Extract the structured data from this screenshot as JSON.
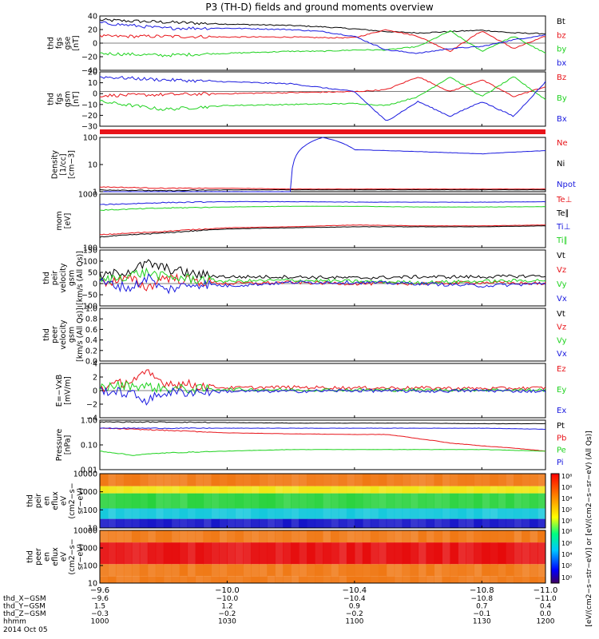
{
  "title": "P3 (TH-D) fields and ground moments overview",
  "colors": {
    "black": "#000000",
    "red": "#e8141a",
    "green": "#1ed21e",
    "blue": "#1a1adf"
  },
  "chart_data": [
    {
      "id": "fgs_gse",
      "type": "line",
      "ylabel": [
        "thd",
        "fgs",
        "gse",
        "[nT]"
      ],
      "ylim": [
        -40,
        40
      ],
      "yticks": [
        "40",
        "20",
        "0",
        "−20",
        "−40"
      ],
      "legend": [
        "Bt",
        "bz",
        "by",
        "bx"
      ],
      "series": [
        {
          "name": "Bt",
          "color": "black",
          "x": [
            -9.6,
            -9.8,
            -10.0,
            -10.2,
            -10.3,
            -10.4,
            -10.5,
            -10.6,
            -10.7,
            -10.8,
            -10.9,
            -11.0
          ],
          "y": [
            34,
            31,
            28,
            26,
            24,
            21,
            17,
            15,
            17,
            19,
            15,
            14
          ]
        },
        {
          "name": "bz",
          "color": "red",
          "x": [
            -9.6,
            -9.8,
            -10.0,
            -10.2,
            -10.3,
            -10.4,
            -10.5,
            -10.6,
            -10.7,
            -10.8,
            -10.9,
            -11.0
          ],
          "y": [
            10,
            10,
            9,
            9,
            8,
            8,
            20,
            10,
            -12,
            18,
            -8,
            10
          ]
        },
        {
          "name": "by",
          "color": "green",
          "x": [
            -9.6,
            -9.8,
            -10.0,
            -10.2,
            -10.3,
            -10.4,
            -10.5,
            -10.6,
            -10.7,
            -10.8,
            -10.9,
            -11.0
          ],
          "y": [
            -15,
            -18,
            -15,
            -12,
            -12,
            -10,
            -10,
            -5,
            18,
            -12,
            10,
            -15
          ]
        },
        {
          "name": "bx",
          "color": "blue",
          "x": [
            -9.6,
            -9.8,
            -10.0,
            -10.2,
            -10.3,
            -10.4,
            -10.5,
            -10.6,
            -10.7,
            -10.8,
            -10.9,
            -11.0
          ],
          "y": [
            30,
            22,
            22,
            20,
            17,
            10,
            -10,
            -15,
            -8,
            -5,
            5,
            12
          ]
        }
      ]
    },
    {
      "id": "fgs_gsm",
      "type": "line",
      "ylabel": [
        "thd",
        "fgs",
        "gsm",
        "[nT]"
      ],
      "ylim": [
        -35,
        20
      ],
      "yticks": [
        "20",
        "10",
        "0",
        "−10",
        "−20",
        "−30"
      ],
      "legend": [
        "Bz",
        "By",
        "Bx"
      ],
      "series": [
        {
          "name": "Bz",
          "color": "red",
          "x": [
            -9.6,
            -9.8,
            -10.0,
            -10.2,
            -10.4,
            -10.5,
            -10.6,
            -10.7,
            -10.8,
            -10.9,
            -11.0
          ],
          "y": [
            -4,
            -3,
            -2,
            -1,
            0,
            2,
            15,
            0,
            12,
            -5,
            5
          ]
        },
        {
          "name": "By",
          "color": "green",
          "x": [
            -9.6,
            -9.8,
            -10.0,
            -10.2,
            -10.4,
            -10.5,
            -10.6,
            -10.7,
            -10.8,
            -10.9,
            -11.0
          ],
          "y": [
            -10,
            -18,
            -14,
            -13,
            -12,
            -14,
            -5,
            15,
            -5,
            15,
            -8
          ]
        },
        {
          "name": "Bx",
          "color": "blue",
          "x": [
            -9.6,
            -9.8,
            -10.0,
            -10.2,
            -10.4,
            -10.5,
            -10.6,
            -10.7,
            -10.8,
            -10.9,
            -11.0
          ],
          "y": [
            15,
            12,
            10,
            8,
            0,
            -30,
            -10,
            -25,
            -10,
            -25,
            10
          ]
        }
      ]
    },
    {
      "id": "density",
      "type": "line",
      "scale": "log",
      "ylabel": [
        "Density",
        "[1/cc]",
        "[cm−3]"
      ],
      "ylim": [
        1,
        200
      ],
      "yticks": [
        "100",
        "10",
        "1"
      ],
      "legend": [
        "Ne",
        "Ni",
        "Npot"
      ],
      "series": [
        {
          "name": "Ne",
          "color": "red",
          "x": [
            -9.6,
            -9.8,
            -10.0,
            -10.2,
            -10.4,
            -10.6,
            -10.8,
            -11.0
          ],
          "y": [
            1.6,
            1.4,
            1.4,
            1.3,
            1.3,
            1.3,
            1.3,
            1.3
          ]
        },
        {
          "name": "Ni",
          "color": "black",
          "x": [
            -9.6,
            -9.8,
            -10.0,
            -10.2,
            -10.4,
            -10.6,
            -10.8,
            -11.0
          ],
          "y": [
            1.2,
            1.1,
            1.2,
            1.2,
            1.2,
            1.2,
            1.2,
            1.2
          ]
        },
        {
          "name": "Npot",
          "color": "blue",
          "x": [
            -9.6,
            -9.8,
            -10.0,
            -10.2,
            -10.3,
            -10.4,
            -10.6,
            -10.8,
            -11.0
          ],
          "y": [
            1.0,
            1.0,
            1.0,
            1.0,
            200,
            60,
            50,
            40,
            55
          ]
        }
      ]
    },
    {
      "id": "moms_temp",
      "type": "line",
      "scale": "log",
      "ylabel": [
        "mom",
        "[eV]"
      ],
      "ylim": [
        100,
        10000
      ],
      "yticks": [
        "1000",
        "100"
      ],
      "legend": [
        "Te⊥",
        "Te∥",
        "Ti⊥",
        "Ti∥"
      ],
      "series": [
        {
          "name": "Te⊥",
          "color": "red",
          "x": [
            -9.6,
            -9.8,
            -10.0,
            -10.2,
            -10.4,
            -10.6,
            -10.8,
            -11.0
          ],
          "y": [
            300,
            400,
            550,
            600,
            700,
            650,
            650,
            700
          ]
        },
        {
          "name": "Te∥",
          "color": "black",
          "x": [
            -9.6,
            -9.8,
            -10.0,
            -10.2,
            -10.4,
            -10.6,
            -10.8,
            -11.0
          ],
          "y": [
            250,
            350,
            500,
            550,
            600,
            600,
            600,
            650
          ]
        },
        {
          "name": "Ti⊥",
          "color": "blue",
          "x": [
            -9.6,
            -9.8,
            -10.0,
            -10.2,
            -10.4,
            -10.6,
            -10.8,
            -11.0
          ],
          "y": [
            4000,
            4800,
            5200,
            5200,
            5000,
            5000,
            5000,
            5200
          ]
        },
        {
          "name": "Ti∥",
          "color": "green",
          "x": [
            -9.6,
            -9.8,
            -10.0,
            -10.2,
            -10.4,
            -10.6,
            -10.8,
            -11.0
          ],
          "y": [
            2500,
            3000,
            3300,
            3500,
            3500,
            3300,
            3300,
            3400
          ]
        }
      ]
    },
    {
      "id": "peir_velocity",
      "type": "line",
      "ylabel": [
        "thd",
        "peir",
        "velocity",
        "gsm",
        "[km/s (All Qs)]"
      ],
      "ylim": [
        -100,
        150
      ],
      "yticks": [
        "150",
        "100",
        "50",
        "0",
        "−50",
        "−100"
      ],
      "legend": [
        "Vt",
        "Vz",
        "Vy",
        "Vx"
      ],
      "series": [
        {
          "name": "Vt",
          "color": "black",
          "x": [
            -9.6,
            -9.7,
            -9.75,
            -9.8,
            -9.9,
            -10.0,
            -10.2,
            -10.4,
            -10.6,
            -10.8,
            -11.0
          ],
          "y": [
            30,
            60,
            90,
            70,
            40,
            30,
            30,
            25,
            30,
            30,
            35
          ]
        },
        {
          "name": "Vz",
          "color": "red",
          "x": [
            -9.6,
            -9.7,
            -9.75,
            -9.8,
            -9.9,
            -10.0,
            -10.2,
            -10.4,
            -10.6,
            -10.8,
            -11.0
          ],
          "y": [
            5,
            20,
            -20,
            30,
            10,
            0,
            5,
            0,
            0,
            5,
            0
          ]
        },
        {
          "name": "Vy",
          "color": "green",
          "x": [
            -9.6,
            -9.7,
            -9.75,
            -9.8,
            -9.9,
            -10.0,
            -10.2,
            -10.4,
            -10.6,
            -10.8,
            -11.0
          ],
          "y": [
            10,
            40,
            50,
            30,
            20,
            10,
            15,
            10,
            5,
            10,
            15
          ]
        },
        {
          "name": "Vx",
          "color": "blue",
          "x": [
            -9.6,
            -9.7,
            -9.75,
            -9.8,
            -9.9,
            -10.0,
            -10.2,
            -10.4,
            -10.6,
            -10.8,
            -11.0
          ],
          "y": [
            5,
            -20,
            30,
            -30,
            0,
            -10,
            5,
            5,
            0,
            -10,
            0
          ]
        }
      ]
    },
    {
      "id": "peer_velocity",
      "type": "line",
      "ylabel": [
        "thd",
        "peer",
        "velocity",
        "gsm",
        "[km/s (All Qs)]"
      ],
      "ylim": [
        0,
        1
      ],
      "yticks": [
        "1.0",
        "0.8",
        "0.6",
        "0.4",
        "0.2",
        "0.0"
      ],
      "legend": [
        "Vt",
        "Vz",
        "Vy",
        "Vx"
      ],
      "series": []
    },
    {
      "id": "efield",
      "type": "line",
      "ylabel": [
        "E=−VxB",
        "[mV/m]"
      ],
      "ylim": [
        -4,
        4
      ],
      "yticks": [
        "4",
        "2",
        "0",
        "−2",
        "−4"
      ],
      "legend": [
        "Ez",
        "Ey",
        "Ex"
      ],
      "series": [
        {
          "name": "Ez",
          "color": "red",
          "x": [
            -9.6,
            -9.7,
            -9.75,
            -9.8,
            -9.9,
            -10.0,
            -10.2,
            -10.4,
            -10.6,
            -10.8,
            -11.0
          ],
          "y": [
            0.3,
            1.5,
            2.5,
            1.2,
            0.8,
            0.4,
            0.5,
            0.4,
            0.4,
            0.3,
            0.4
          ]
        },
        {
          "name": "Ey",
          "color": "green",
          "x": [
            -9.6,
            -9.7,
            -9.75,
            -9.8,
            -9.9,
            -10.0,
            -10.2,
            -10.4,
            -10.6,
            -10.8,
            -11.0
          ],
          "y": [
            0.5,
            0.8,
            0.6,
            0.3,
            0.2,
            0.2,
            0.1,
            0.1,
            0.1,
            0.1,
            0.1
          ]
        },
        {
          "name": "Ex",
          "color": "blue",
          "x": [
            -9.6,
            -9.7,
            -9.75,
            -9.8,
            -9.9,
            -10.0,
            -10.2,
            -10.4,
            -10.6,
            -10.8,
            -11.0
          ],
          "y": [
            0.1,
            -0.5,
            -1.5,
            -0.3,
            -0.2,
            -0.1,
            -0.1,
            0.0,
            -0.1,
            0.0,
            -0.1
          ]
        }
      ]
    },
    {
      "id": "pressure",
      "type": "line",
      "scale": "log",
      "ylabel": [
        "Pressure",
        "[nPa]"
      ],
      "ylim": [
        0.01,
        1.2
      ],
      "yticks": [
        "1.00",
        "0.10",
        "0.01"
      ],
      "legend": [
        "Pt",
        "Pb",
        "Pe",
        "Pi"
      ],
      "series": [
        {
          "name": "Pt",
          "color": "black",
          "x": [
            -9.6,
            -9.8,
            -10.0,
            -10.2,
            -10.4,
            -10.6,
            -10.8,
            -11.0
          ],
          "y": [
            1.0,
            1.0,
            0.95,
            0.9,
            0.9,
            0.9,
            0.85,
            0.85
          ]
        },
        {
          "name": "Pb",
          "color": "red",
          "x": [
            -9.6,
            -9.8,
            -10.0,
            -10.2,
            -10.4,
            -10.5,
            -10.6,
            -10.7,
            -10.8,
            -10.9,
            -11.0
          ],
          "y": [
            0.55,
            0.45,
            0.35,
            0.32,
            0.3,
            0.3,
            0.2,
            0.13,
            0.1,
            0.08,
            0.06
          ]
        },
        {
          "name": "Pe",
          "color": "green",
          "x": [
            -9.6,
            -9.7,
            -9.8,
            -10.0,
            -10.2,
            -10.4,
            -10.6,
            -10.8,
            -11.0
          ],
          "y": [
            0.06,
            0.04,
            0.05,
            0.06,
            0.07,
            0.07,
            0.07,
            0.07,
            0.06
          ]
        },
        {
          "name": "Pi",
          "color": "blue",
          "x": [
            -9.6,
            -9.8,
            -10.0,
            -10.2,
            -10.4,
            -10.6,
            -10.8,
            -11.0
          ],
          "y": [
            0.55,
            0.55,
            0.55,
            0.55,
            0.55,
            0.55,
            0.55,
            0.5
          ]
        }
      ]
    },
    {
      "id": "peir_spec",
      "type": "heatmap",
      "scale": "log",
      "ylabel": [
        "thd",
        "peir",
        "en",
        "eflux",
        "eV",
        "(cm2−s−",
        "sr−eV)"
      ],
      "ylim": [
        5,
        20000
      ],
      "yticks": [
        "10000",
        "1000",
        "100",
        "10"
      ],
      "description_bands": [
        [
          5,
          20,
          "blue"
        ],
        [
          20,
          100,
          "cyan"
        ],
        [
          100,
          1000,
          "green"
        ],
        [
          1000,
          3000,
          "yellow"
        ],
        [
          3000,
          20000,
          "orange"
        ]
      ]
    },
    {
      "id": "peer_spec",
      "type": "heatmap",
      "scale": "log",
      "ylabel": [
        "thd",
        "peer",
        "en",
        "eflux",
        "eV",
        "(cm2−s−",
        "sr−eV)"
      ],
      "ylim": [
        5,
        20000
      ],
      "yticks": [
        "10000",
        "1000",
        "100",
        "10"
      ],
      "description_bands": [
        [
          5,
          15,
          "orange"
        ],
        [
          15,
          100,
          "orange"
        ],
        [
          100,
          3000,
          "red"
        ],
        [
          3000,
          20000,
          "orange"
        ]
      ]
    }
  ],
  "colorbar": {
    "label": "[eV/(cm2−s−str−eV)] or [eV/(cm2−s−sr−eV) (All Qs)]",
    "ticks_top": [
      "10⁸",
      "10⁶",
      "10⁴",
      "10²",
      "10⁰"
    ],
    "ticks_bottom": [
      "10⁸",
      "10⁶",
      "10⁴",
      "10²",
      "10⁰"
    ]
  },
  "x_axis": {
    "ticks": [
      "−9.6",
      "−10.0",
      "−10.4",
      "−10.8",
      "−11.0"
    ],
    "rows": [
      {
        "label": "thd_X−GSM",
        "values": [
          "−9.6",
          "−10.0",
          "−10.4",
          "−10.8",
          "−11.0"
        ]
      },
      {
        "label": "thd_Y−GSM",
        "values": [
          "1.5",
          "1.2",
          "0.9",
          "0.7",
          "0.4"
        ]
      },
      {
        "label": "thd_Z−GSM",
        "values": [
          "−0.3",
          "−0.2",
          "−0.2",
          "−0.1",
          "0.0"
        ]
      },
      {
        "label": "hhmm",
        "values": [
          "1000",
          "1030",
          "1100",
          "1130",
          "1200"
        ]
      }
    ],
    "date": "2014 Oct 05"
  }
}
